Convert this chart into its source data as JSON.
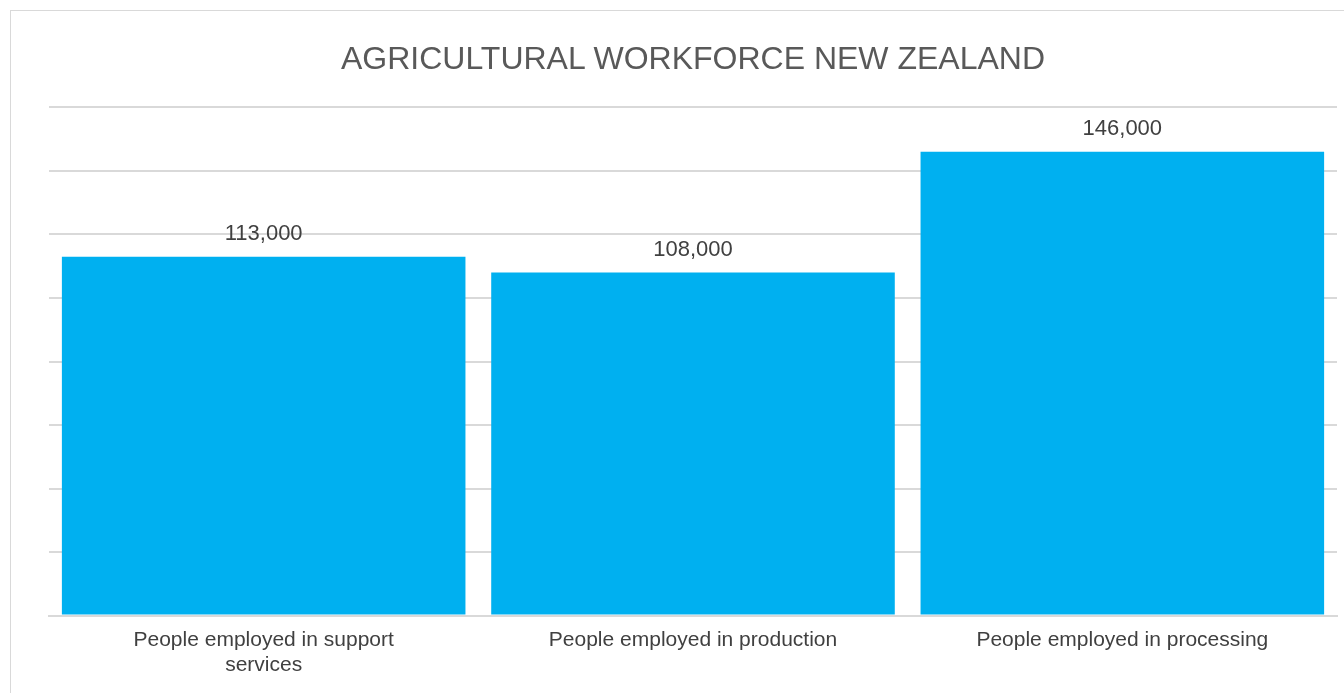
{
  "chart_data": {
    "type": "bar",
    "title": "AGRICULTURAL WORKFORCE NEW ZEALAND",
    "categories": [
      "People employed in support services",
      "People employed in production",
      "People employed in processing"
    ],
    "values": [
      113000,
      108000,
      146000
    ],
    "color": "#00b0f0",
    "value_labels": [
      "113,000",
      "108,000",
      "146,000"
    ],
    "grid": "y",
    "tick_labels": "x",
    "legend": false
  }
}
